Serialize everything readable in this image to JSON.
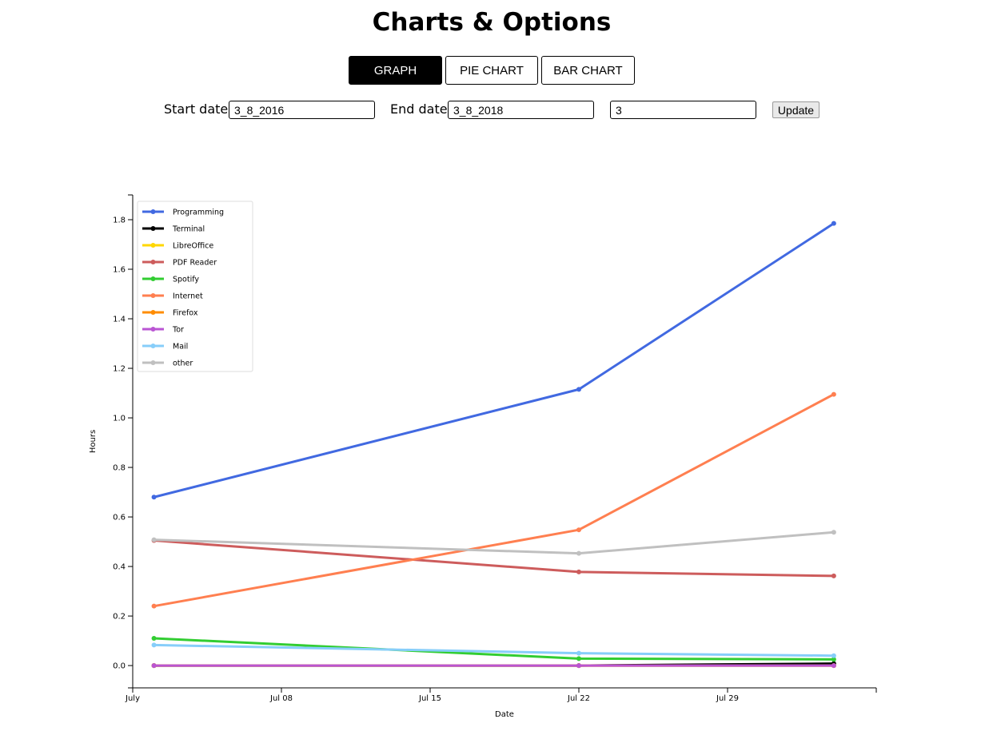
{
  "page_title": "Charts & Options",
  "tabs": [
    {
      "label": "GRAPH",
      "active": true
    },
    {
      "label": "PIE CHART",
      "active": false
    },
    {
      "label": "BAR CHART",
      "active": false
    }
  ],
  "form": {
    "start_label": "Start date:",
    "start_value": "3_8_2016",
    "end_label": "End date:",
    "end_value": "3_8_2018",
    "count_value": "3",
    "update_label": "Update"
  },
  "chart_data": {
    "type": "line",
    "xlabel": "Date",
    "ylabel": "Hours",
    "x": [
      "2018-07-02",
      "2018-07-22",
      "2018-08-03"
    ],
    "xlim": [
      "2018-07-01",
      "2018-08-05"
    ],
    "ylim": [
      -0.09,
      1.9
    ],
    "x_ticks": [
      {
        "date": "2018-07-01",
        "label": "July"
      },
      {
        "date": "2018-07-08",
        "label": "Jul 08"
      },
      {
        "date": "2018-07-15",
        "label": "Jul 15"
      },
      {
        "date": "2018-07-22",
        "label": "Jul 22"
      },
      {
        "date": "2018-07-29",
        "label": "Jul 29"
      }
    ],
    "y_ticks": [
      "0.0",
      "0.2",
      "0.4",
      "0.6",
      "0.8",
      "1.0",
      "1.2",
      "1.4",
      "1.6",
      "1.8"
    ],
    "legend_position": "top-left",
    "grid": false,
    "series": [
      {
        "name": "Programming",
        "color": "#4169e1",
        "values": [
          0.68,
          1.115,
          1.785
        ]
      },
      {
        "name": "Terminal",
        "color": "#000000",
        "values": [
          0.0,
          0.0,
          0.008
        ]
      },
      {
        "name": "LibreOffice",
        "color": "#ffd700",
        "values": [
          0.0,
          0.0,
          0.0
        ]
      },
      {
        "name": "PDF Reader",
        "color": "#cd5c5c",
        "values": [
          0.505,
          0.378,
          0.362
        ]
      },
      {
        "name": "Spotify",
        "color": "#32cd32",
        "values": [
          0.11,
          0.028,
          0.025
        ]
      },
      {
        "name": "Internet",
        "color": "#ff7f50",
        "values": [
          0.24,
          0.548,
          1.095
        ]
      },
      {
        "name": "Firefox",
        "color": "#ff8c00",
        "values": [
          0.0,
          0.0,
          0.0
        ]
      },
      {
        "name": "Tor",
        "color": "#ba55d3",
        "values": [
          0.0,
          0.0,
          0.0
        ]
      },
      {
        "name": "Mail",
        "color": "#87cefa",
        "values": [
          0.083,
          0.05,
          0.04
        ]
      },
      {
        "name": "other",
        "color": "#c0c0c0",
        "values": [
          0.508,
          0.453,
          0.538
        ]
      }
    ]
  }
}
